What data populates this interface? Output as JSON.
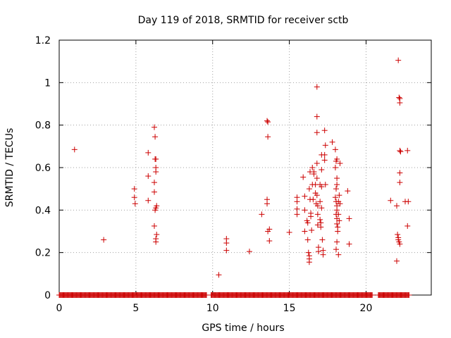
{
  "chart_data": {
    "type": "scatter",
    "title": "Day 119 of 2018, SRMTID for receiver sctb",
    "xlabel": "GPS time / hours",
    "ylabel": "SRMTID / TECUs",
    "xlim": [
      0,
      24.25
    ],
    "ylim": [
      0,
      1.2
    ],
    "xticks": [
      0,
      5,
      10,
      15,
      20
    ],
    "xtick_labels": [
      "0",
      "5",
      "10",
      "15",
      "20"
    ],
    "yticks": [
      0,
      0.2,
      0.4,
      0.6,
      0.8,
      1.0,
      1.2
    ],
    "ytick_labels": [
      "0",
      "0.2",
      "0.4",
      "0.6",
      "0.8",
      "1",
      "1.2"
    ],
    "grid": true,
    "marker": "+",
    "marker_color": "#cc0000",
    "baseline_zero_ranges": [
      [
        0,
        9.6
      ],
      [
        9.9,
        20.4
      ],
      [
        20.8,
        22.8
      ]
    ],
    "series": [
      {
        "name": "SRMTID",
        "points": [
          [
            1.0,
            0.685
          ],
          [
            2.9,
            0.26
          ],
          [
            4.9,
            0.5
          ],
          [
            4.9,
            0.46
          ],
          [
            4.95,
            0.43
          ],
          [
            5.8,
            0.67
          ],
          [
            5.8,
            0.56
          ],
          [
            5.8,
            0.445
          ],
          [
            6.2,
            0.79
          ],
          [
            6.25,
            0.745
          ],
          [
            6.25,
            0.64
          ],
          [
            6.3,
            0.64
          ],
          [
            6.3,
            0.6
          ],
          [
            6.3,
            0.58
          ],
          [
            6.2,
            0.53
          ],
          [
            6.2,
            0.485
          ],
          [
            6.3,
            0.41
          ],
          [
            6.35,
            0.42
          ],
          [
            6.25,
            0.4
          ],
          [
            6.2,
            0.325
          ],
          [
            6.35,
            0.285
          ],
          [
            6.3,
            0.265
          ],
          [
            6.3,
            0.25
          ],
          [
            10.4,
            0.095
          ],
          [
            10.9,
            0.265
          ],
          [
            10.9,
            0.245
          ],
          [
            10.9,
            0.21
          ],
          [
            12.4,
            0.205
          ],
          [
            13.2,
            0.38
          ],
          [
            13.55,
            0.82
          ],
          [
            13.6,
            0.815
          ],
          [
            13.6,
            0.745
          ],
          [
            13.55,
            0.45
          ],
          [
            13.55,
            0.43
          ],
          [
            13.7,
            0.31
          ],
          [
            13.6,
            0.3
          ],
          [
            13.7,
            0.255
          ],
          [
            15.0,
            0.295
          ],
          [
            15.5,
            0.46
          ],
          [
            15.5,
            0.44
          ],
          [
            15.5,
            0.405
          ],
          [
            15.5,
            0.38
          ],
          [
            15.9,
            0.555
          ],
          [
            16.0,
            0.465
          ],
          [
            16.0,
            0.4
          ],
          [
            16.0,
            0.3
          ],
          [
            16.15,
            0.35
          ],
          [
            16.2,
            0.34
          ],
          [
            16.2,
            0.26
          ],
          [
            16.25,
            0.2
          ],
          [
            16.3,
            0.185
          ],
          [
            16.3,
            0.17
          ],
          [
            16.3,
            0.155
          ],
          [
            16.35,
            0.58
          ],
          [
            16.3,
            0.5
          ],
          [
            16.35,
            0.45
          ],
          [
            16.4,
            0.385
          ],
          [
            16.4,
            0.37
          ],
          [
            16.45,
            0.305
          ],
          [
            16.5,
            0.6
          ],
          [
            16.5,
            0.52
          ],
          [
            16.55,
            0.45
          ],
          [
            16.6,
            0.58
          ],
          [
            16.6,
            0.57
          ],
          [
            16.7,
            0.52
          ],
          [
            16.7,
            0.48
          ],
          [
            16.75,
            0.43
          ],
          [
            16.8,
            0.98
          ],
          [
            16.8,
            0.84
          ],
          [
            16.8,
            0.765
          ],
          [
            16.8,
            0.62
          ],
          [
            16.8,
            0.55
          ],
          [
            16.8,
            0.47
          ],
          [
            16.85,
            0.42
          ],
          [
            16.85,
            0.38
          ],
          [
            16.85,
            0.33
          ],
          [
            16.9,
            0.225
          ],
          [
            16.9,
            0.205
          ],
          [
            17.0,
            0.52
          ],
          [
            17.0,
            0.44
          ],
          [
            17.0,
            0.355
          ],
          [
            17.05,
            0.34
          ],
          [
            17.05,
            0.32
          ],
          [
            17.1,
            0.66
          ],
          [
            17.1,
            0.59
          ],
          [
            17.1,
            0.51
          ],
          [
            17.1,
            0.41
          ],
          [
            17.15,
            0.26
          ],
          [
            17.2,
            0.19
          ],
          [
            17.2,
            0.21
          ],
          [
            17.3,
            0.775
          ],
          [
            17.35,
            0.705
          ],
          [
            17.3,
            0.66
          ],
          [
            17.3,
            0.635
          ],
          [
            17.35,
            0.52
          ],
          [
            17.8,
            0.72
          ],
          [
            18.0,
            0.685
          ],
          [
            18.1,
            0.64
          ],
          [
            18.05,
            0.63
          ],
          [
            18.0,
            0.6
          ],
          [
            18.1,
            0.55
          ],
          [
            18.1,
            0.52
          ],
          [
            18.05,
            0.5
          ],
          [
            18.0,
            0.46
          ],
          [
            18.05,
            0.44
          ],
          [
            18.1,
            0.42
          ],
          [
            18.1,
            0.4
          ],
          [
            18.05,
            0.38
          ],
          [
            18.1,
            0.36
          ],
          [
            18.1,
            0.335
          ],
          [
            18.15,
            0.32
          ],
          [
            18.15,
            0.3
          ],
          [
            18.1,
            0.25
          ],
          [
            18.05,
            0.215
          ],
          [
            18.2,
            0.19
          ],
          [
            18.2,
            0.44
          ],
          [
            18.2,
            0.38
          ],
          [
            18.25,
            0.35
          ],
          [
            18.3,
            0.62
          ],
          [
            18.25,
            0.47
          ],
          [
            18.3,
            0.43
          ],
          [
            18.8,
            0.49
          ],
          [
            18.9,
            0.36
          ],
          [
            18.9,
            0.24
          ],
          [
            21.6,
            0.445
          ],
          [
            22.0,
            0.42
          ],
          [
            22.0,
            0.16
          ],
          [
            22.05,
            0.285
          ],
          [
            22.1,
            0.27
          ],
          [
            22.1,
            0.26
          ],
          [
            22.15,
            0.25
          ],
          [
            22.1,
            1.105
          ],
          [
            22.15,
            0.93
          ],
          [
            22.2,
            0.925
          ],
          [
            22.2,
            0.905
          ],
          [
            22.2,
            0.68
          ],
          [
            22.25,
            0.675
          ],
          [
            22.2,
            0.575
          ],
          [
            22.2,
            0.53
          ],
          [
            22.2,
            0.24
          ],
          [
            22.55,
            0.44
          ],
          [
            22.75,
            0.44
          ],
          [
            22.7,
            0.68
          ],
          [
            22.7,
            0.325
          ]
        ]
      }
    ]
  }
}
